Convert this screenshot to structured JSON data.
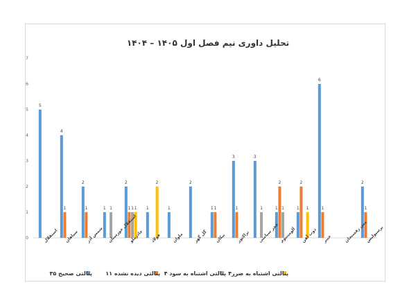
{
  "chart_data": {
    "type": "bar",
    "title": "تحلیل داوری نیم فصل اول ۱۴۰۵ – ۱۴۰۴",
    "ylim": [
      0,
      7
    ],
    "yticks": [
      "0",
      "1",
      "2",
      "3",
      "4",
      "5",
      "6",
      "7"
    ],
    "grid": false,
    "legend_position": "bottom",
    "categories": [
      "استقلال",
      "سپاهان",
      "شمس آذر",
      "استقلال خوزستان",
      "چادرملو",
      "فولاد",
      "ملوان",
      "گل گهر",
      "پیکان",
      "تراکتور",
      "فجر سپاسی",
      "آلومینیوم",
      "ذوب آهن",
      "خیبر",
      "مس رفسنجان",
      "پرسپولیس"
    ],
    "series": [
      {
        "name": "پنالتی صحیح ۳۵",
        "color": "#5b9bd5",
        "values": [
          5,
          4,
          2,
          1,
          2,
          1,
          1,
          2,
          1,
          3,
          3,
          1,
          1,
          6,
          0,
          2
        ]
      },
      {
        "name": "پنالتی دیده نشده ۱۱",
        "color": "#ed7d31",
        "values": [
          0,
          1,
          1,
          0,
          1,
          0,
          0,
          0,
          1,
          1,
          0,
          2,
          2,
          1,
          0,
          1
        ]
      },
      {
        "name": "پنالتی اشتباه به سود ۴",
        "color": "#a5a5a5",
        "values": [
          0,
          0,
          0,
          1,
          1,
          0,
          0,
          0,
          0,
          0,
          1,
          1,
          0,
          0,
          0,
          0
        ]
      },
      {
        "name": "پنالتی اشتباه به ضرر۴",
        "color": "#ffc000",
        "values": [
          0,
          0,
          0,
          0,
          1,
          2,
          0,
          0,
          0,
          0,
          0,
          0,
          1,
          0,
          0,
          0
        ]
      }
    ]
  }
}
